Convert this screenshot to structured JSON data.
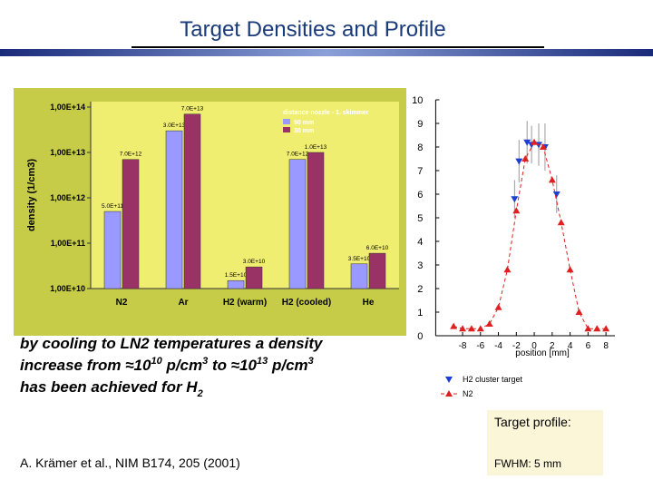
{
  "title": "Target Densities and Profile",
  "chart_data": [
    {
      "type": "bar",
      "log_scale": true,
      "background": "#c6cc48",
      "ylabel": "density (1/cm3)",
      "categories": [
        "N2",
        "Ar",
        "H2 (warm)",
        "H2 (cooled)",
        "He"
      ],
      "legend_title": "distance nozzle - 1. skimmer",
      "series": [
        {
          "name": "90 mm",
          "color": "#9999ff",
          "values": [
            500000000000.0,
            30000000000000.0,
            15000000000.0,
            7000000000000.0,
            35000000000.0
          ],
          "value_labels": [
            "5.0E+11",
            "3.0E+13",
            "1.5E+10",
            "7.0E+12",
            "3.5E+10"
          ]
        },
        {
          "name": "30 mm",
          "color": "#993366",
          "values": [
            7000000000000.0,
            70000000000000.0,
            30000000000.0,
            10000000000000.0,
            60000000000.0
          ],
          "value_labels": [
            "7.0E+12",
            "7.0E+13",
            "3.0E+10",
            "1.0E+13",
            "6.0E+10"
          ]
        }
      ],
      "ylim": [
        10000000000.0,
        100000000000000.0
      ],
      "yticks": [
        {
          "value": 10000000000.0,
          "label": "1,00E+10"
        },
        {
          "value": 100000000000.0,
          "label": "1,00E+11"
        },
        {
          "value": 1000000000000.0,
          "label": "1,00E+12"
        },
        {
          "value": 10000000000000.0,
          "label": "1,00E+13"
        },
        {
          "value": 100000000000000.0,
          "label": "1,00E+14"
        }
      ]
    },
    {
      "type": "scatter",
      "xlabel": "position [mm]",
      "xlim": [
        -11,
        9
      ],
      "ylim": [
        0,
        10
      ],
      "xticks": [
        -8,
        -6,
        -4,
        -2,
        0,
        2,
        4,
        6,
        8
      ],
      "yticks": [
        0,
        1,
        2,
        3,
        4,
        5,
        6,
        7,
        8,
        9,
        10
      ],
      "series": [
        {
          "name": "H2 cluster target",
          "color": "#1f3fd0",
          "marker": "triangle-down",
          "x": [
            -2.2,
            -1.7,
            -0.8,
            -0.3,
            0.5,
            1.2,
            2.5
          ],
          "values": [
            5.8,
            7.4,
            8.2,
            8.1,
            8.1,
            8.0,
            6.0
          ],
          "errors": [
            0.8,
            0.9,
            0.9,
            0.8,
            0.9,
            1.0,
            0.8
          ]
        },
        {
          "name": "N2",
          "color": "#e02020",
          "marker": "triangle-up",
          "line": "dashed",
          "x": [
            -9,
            -8,
            -7,
            -6,
            -5,
            -4,
            -3,
            -2,
            -1,
            0,
            1,
            2,
            3,
            4,
            5,
            6,
            7,
            8
          ],
          "values": [
            0.4,
            0.3,
            0.3,
            0.3,
            0.5,
            1.2,
            2.8,
            5.3,
            7.5,
            8.2,
            8.0,
            6.6,
            4.8,
            2.8,
            1.0,
            0.3,
            0.3,
            0.3
          ]
        }
      ]
    }
  ],
  "caption": [
    [
      "by cooling to LN2 temperatures a density"
    ],
    [
      "increase from ≈10",
      "10",
      " p/cm",
      "3",
      " to ≈10",
      "13",
      " p/cm",
      "3"
    ],
    [
      "has been achieved for H",
      "2"
    ]
  ],
  "profile_label": "Target profile:",
  "fwhm": "FWHM: 5 mm",
  "reference": "A. Krämer et al., NIM B174, 205 (2001)"
}
